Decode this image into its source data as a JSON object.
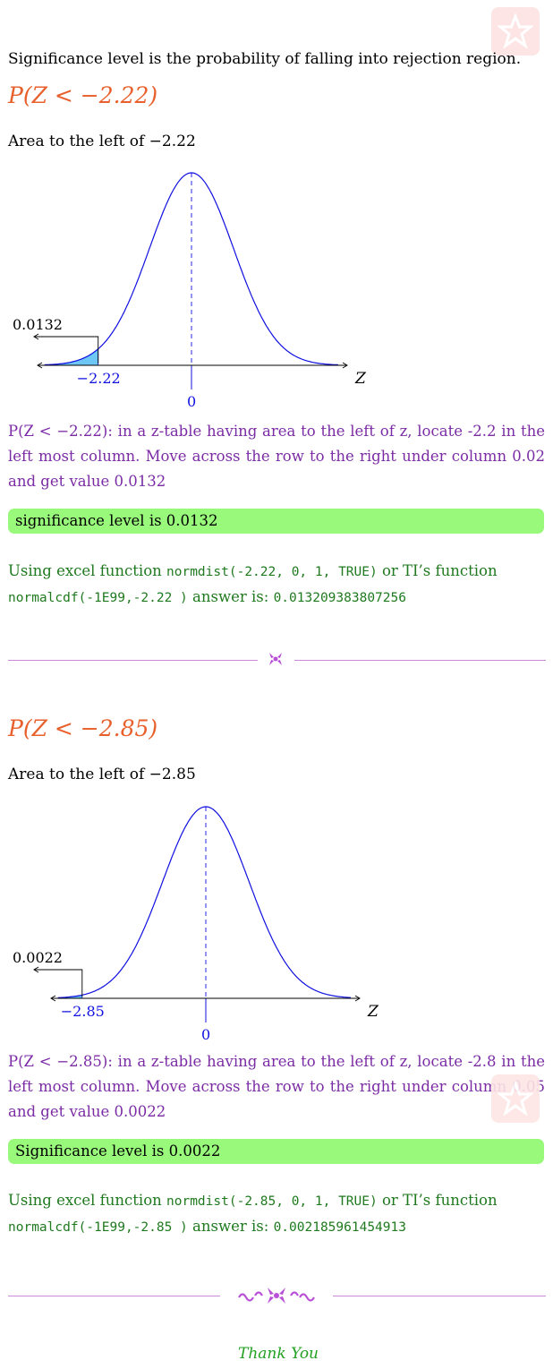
{
  "intro": "Significance level is the probability of falling into rejection region.",
  "parts": [
    {
      "heading": "P(Z < −2.22)",
      "area_text": "Area to the left of −2.22",
      "chart_data": {
        "type": "area",
        "curve": "standard normal",
        "mean": 0,
        "axis_label": "Z",
        "shaded_region": "left tail",
        "boundary": -2.22,
        "boundary_label": "−2.22",
        "mean_label": "0",
        "area_label": "0.0132",
        "area_value": 0.0132
      },
      "explanation": "P(Z < −2.22): in a z-table having area to the left of z, locate -2.2 in the left most column. Move across the row to the right under column 0.02 and get value 0.0132",
      "result": "significance level is 0.0132",
      "excel_prefix": "Using excel function",
      "excel_code": "normdist(-2.22, 0, 1, TRUE)",
      "ti_prefix": "or TI’s function",
      "ti_code": "normalcdf(-1E99,-2.22 )",
      "answer_prefix": "answer is:",
      "answer_code": "0.013209383807256"
    },
    {
      "heading": "P(Z < −2.85)",
      "area_text": "Area to the left of −2.85",
      "chart_data": {
        "type": "area",
        "curve": "standard normal",
        "mean": 0,
        "axis_label": "Z",
        "shaded_region": "left tail",
        "boundary": -2.85,
        "boundary_label": "−2.85",
        "mean_label": "0",
        "area_label": "0.0022",
        "area_value": 0.0022
      },
      "explanation": "P(Z < −2.85): in a z-table having area to the left of z, locate -2.8 in the left most column. Move across the row to the right under column 0.05 and get value 0.0022",
      "result": "Significance level is 0.0022",
      "excel_prefix": "Using excel function",
      "excel_code": "normdist(-2.85, 0, 1, TRUE)",
      "ti_prefix": "or TI’s function",
      "ti_code": "normalcdf(-1E99,-2.85 )",
      "answer_prefix": "answer is:",
      "answer_code": "0.002185961454913"
    }
  ],
  "thanks": "Thank You",
  "colors": {
    "heading": "#e8602c",
    "explanation": "#7b2ca5",
    "result_box": "#98f97a",
    "code_text": "#1f7a1f",
    "curve": "#1010e0",
    "shade": "#6ec6f5",
    "divider": "#c78bd8"
  },
  "icons": [
    "watermark-star-icon",
    "divider-ornament-icon",
    "flourish-ornament-icon"
  ]
}
